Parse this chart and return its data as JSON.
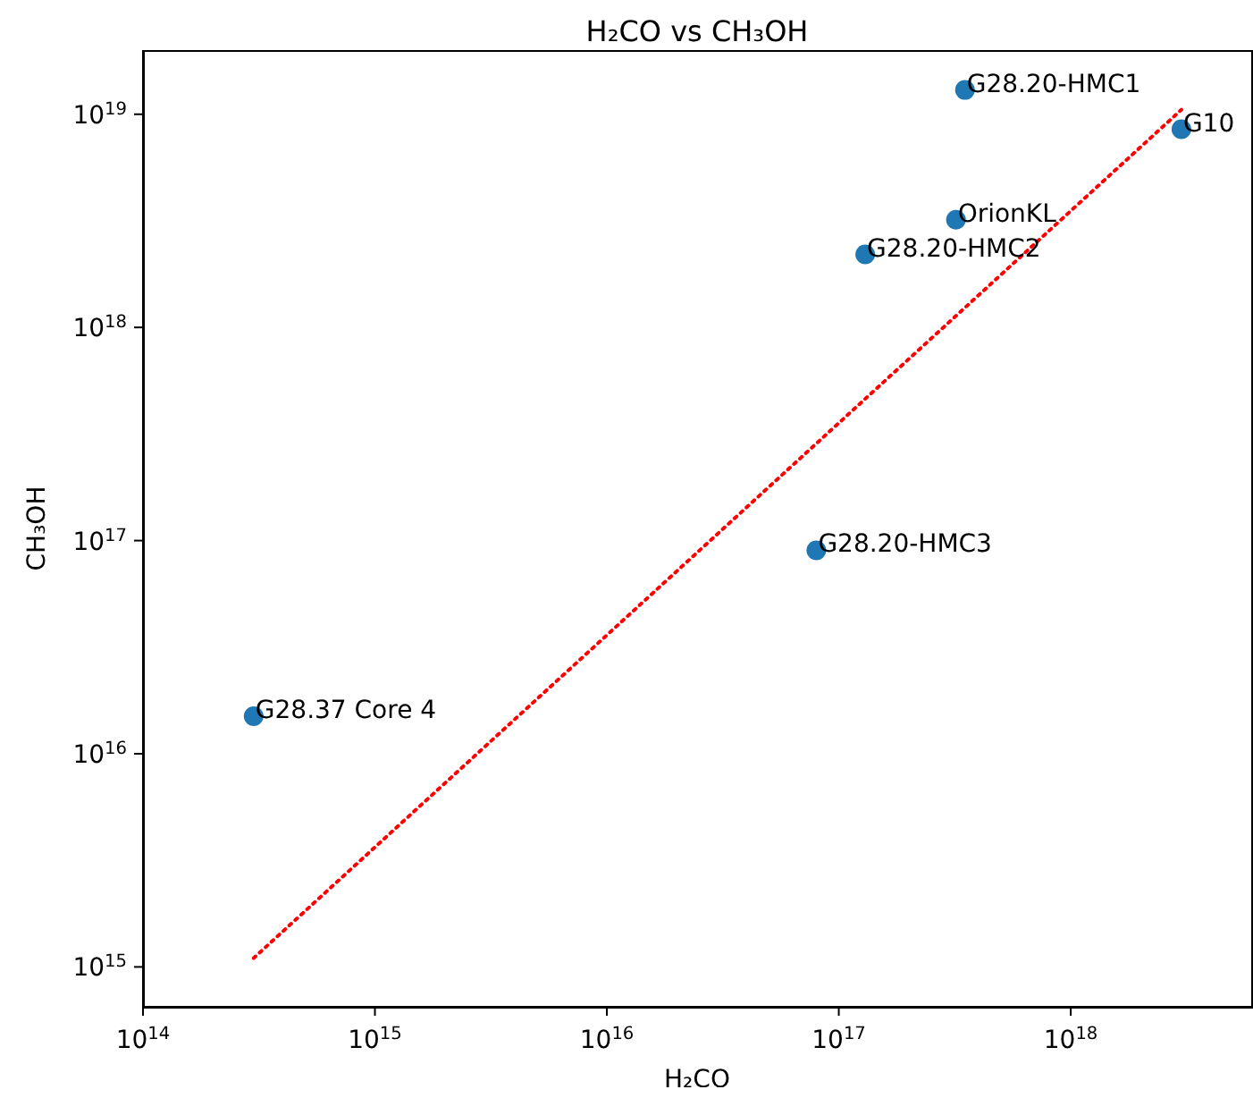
{
  "chart_data": {
    "type": "scatter",
    "title": "H₂CO vs CH₃OH",
    "xlabel": "H₂CO",
    "ylabel": "CH₃OH",
    "log": "xy",
    "xlim": [
      100000000000000.0,
      6e+18
    ],
    "ylim": [
      650000000000000.0,
      2e+19
    ],
    "xticks": [
      {
        "value": 100000000000000.0,
        "label": "10$^{14}$"
      },
      {
        "value": 1000000000000000.0,
        "label": "10$^{15}$"
      },
      {
        "value": 1e+16,
        "label": "10$^{16}$"
      },
      {
        "value": 1e+17,
        "label": "10$^{17}$"
      },
      {
        "value": 1e+18,
        "label": "10$^{18}$"
      }
    ],
    "yticks": [
      {
        "value": 1000000000000000.0,
        "label": "10$^{15}$"
      },
      {
        "value": 1e+16,
        "label": "10$^{16}$"
      },
      {
        "value": 1e+17,
        "label": "10$^{17}$"
      },
      {
        "value": 1e+18,
        "label": "10$^{18}$"
      },
      {
        "value": 1e+19,
        "label": "10$^{19}$"
      }
    ],
    "grid": false,
    "legend": false,
    "marker": "circle",
    "series": [
      {
        "type": "scatter",
        "color": "#1f77b4",
        "x": [
          300000000000000.0,
          8e+16,
          1.3e+17,
          3.2e+17,
          3.5e+17,
          3e+18
        ],
        "values": [
          1.5e+16,
          9e+16,
          2.2e+18,
          3.2e+18,
          1.3e+19,
          8.5e+18
        ]
      },
      {
        "type": "line",
        "color": "#ff0000",
        "line_style": "dotted",
        "marker": "none",
        "x": [
          300000000000000.0,
          3e+18
        ],
        "values": [
          1100000000000000.0,
          1.05e+19
        ]
      }
    ],
    "annotations": [
      {
        "text": "G28.37 Core 4",
        "x": 300000000000000.0,
        "y": 1.5e+16
      },
      {
        "text": "G28.20-HMC3",
        "x": 8e+16,
        "y": 9e+16
      },
      {
        "text": "G28.20-HMC2",
        "x": 1.3e+17,
        "y": 2.2e+18
      },
      {
        "text": "OrionKL",
        "x": 3.2e+17,
        "y": 3.2e+18
      },
      {
        "text": "G28.20-HMC1",
        "x": 3.5e+17,
        "y": 1.3e+19
      },
      {
        "text": "G10",
        "x": 3e+18,
        "y": 8.5e+18
      }
    ]
  }
}
